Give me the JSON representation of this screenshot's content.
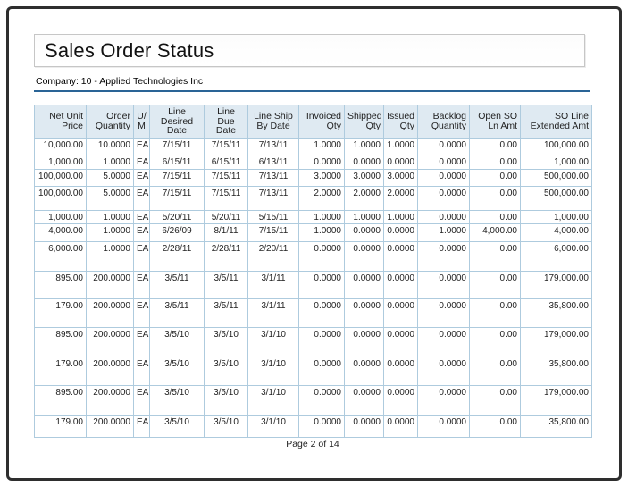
{
  "page": {
    "title": "Sales Order Status",
    "company_label": "Company: 10 - Applied Technologies Inc",
    "footer": "Page 2 of 14"
  },
  "colors": {
    "accent_rule": "#2a6496",
    "table_border": "#aecbde",
    "header_bg": "#dfeaf2",
    "page_border": "#2e2e2e"
  },
  "table": {
    "columns": [
      {
        "id": "net-unit-price",
        "label": "Net Unit\nPrice"
      },
      {
        "id": "order-quantity",
        "label": "Order\nQuantity"
      },
      {
        "id": "um",
        "label": "U/\nM"
      },
      {
        "id": "line-desired-date",
        "label": "Line\nDesired\nDate"
      },
      {
        "id": "line-due-date",
        "label": "Line Due\nDate"
      },
      {
        "id": "line-ship-by-date",
        "label": "Line Ship\nBy Date"
      },
      {
        "id": "invoiced-qty",
        "label": "Invoiced\nQty"
      },
      {
        "id": "shipped-qty",
        "label": "Shipped\nQty"
      },
      {
        "id": "issued-qty",
        "label": "Issued\nQty"
      },
      {
        "id": "backlog-quantity",
        "label": "Backlog\nQuantity"
      },
      {
        "id": "open-so-ln-amt",
        "label": "Open SO\nLn Amt"
      },
      {
        "id": "so-line-extended-amt",
        "label": "SO Line\nExtended Amt"
      }
    ],
    "rows": [
      [
        "10,000.00",
        "10.0000",
        "EA",
        "7/15/11",
        "7/15/11",
        "7/13/11",
        "1.0000",
        "1.0000",
        "1.0000",
        "0.0000",
        "0.00",
        "100,000.00"
      ],
      [
        "1,000.00",
        "1.0000",
        "EA",
        "6/15/11",
        "6/15/11",
        "6/13/11",
        "0.0000",
        "0.0000",
        "0.0000",
        "0.0000",
        "0.00",
        "1,000.00"
      ],
      [
        "100,000.00",
        "5.0000",
        "EA",
        "7/15/11",
        "7/15/11",
        "7/13/11",
        "3.0000",
        "3.0000",
        "3.0000",
        "0.0000",
        "0.00",
        "500,000.00"
      ],
      [
        "100,000.00",
        "5.0000",
        "EA",
        "7/15/11",
        "7/15/11",
        "7/13/11",
        "2.0000",
        "2.0000",
        "2.0000",
        "0.0000",
        "0.00",
        "500,000.00"
      ],
      [
        "1,000.00",
        "1.0000",
        "EA",
        "5/20/11",
        "5/20/11",
        "5/15/11",
        "1.0000",
        "1.0000",
        "1.0000",
        "0.0000",
        "0.00",
        "1,000.00"
      ],
      [
        "4,000.00",
        "1.0000",
        "EA",
        "6/26/09",
        "8/1/11",
        "7/15/11",
        "1.0000",
        "0.0000",
        "0.0000",
        "1.0000",
        "4,000.00",
        "4,000.00"
      ],
      [
        "6,000.00",
        "1.0000",
        "EA",
        "2/28/11",
        "2/28/11",
        "2/20/11",
        "0.0000",
        "0.0000",
        "0.0000",
        "0.0000",
        "0.00",
        "6,000.00"
      ],
      [
        "895.00",
        "200.0000",
        "EA",
        "3/5/11",
        "3/5/11",
        "3/1/11",
        "0.0000",
        "0.0000",
        "0.0000",
        "0.0000",
        "0.00",
        "179,000.00"
      ],
      [
        "179.00",
        "200.0000",
        "EA",
        "3/5/11",
        "3/5/11",
        "3/1/11",
        "0.0000",
        "0.0000",
        "0.0000",
        "0.0000",
        "0.00",
        "35,800.00"
      ],
      [
        "895.00",
        "200.0000",
        "EA",
        "3/5/10",
        "3/5/10",
        "3/1/10",
        "0.0000",
        "0.0000",
        "0.0000",
        "0.0000",
        "0.00",
        "179,000.00"
      ],
      [
        "179.00",
        "200.0000",
        "EA",
        "3/5/10",
        "3/5/10",
        "3/1/10",
        "0.0000",
        "0.0000",
        "0.0000",
        "0.0000",
        "0.00",
        "35,800.00"
      ],
      [
        "895.00",
        "200.0000",
        "EA",
        "3/5/10",
        "3/5/10",
        "3/1/10",
        "0.0000",
        "0.0000",
        "0.0000",
        "0.0000",
        "0.00",
        "179,000.00"
      ],
      [
        "179.00",
        "200.0000",
        "EA",
        "3/5/10",
        "3/5/10",
        "3/1/10",
        "0.0000",
        "0.0000",
        "0.0000",
        "0.0000",
        "0.00",
        "35,800.00"
      ]
    ]
  }
}
